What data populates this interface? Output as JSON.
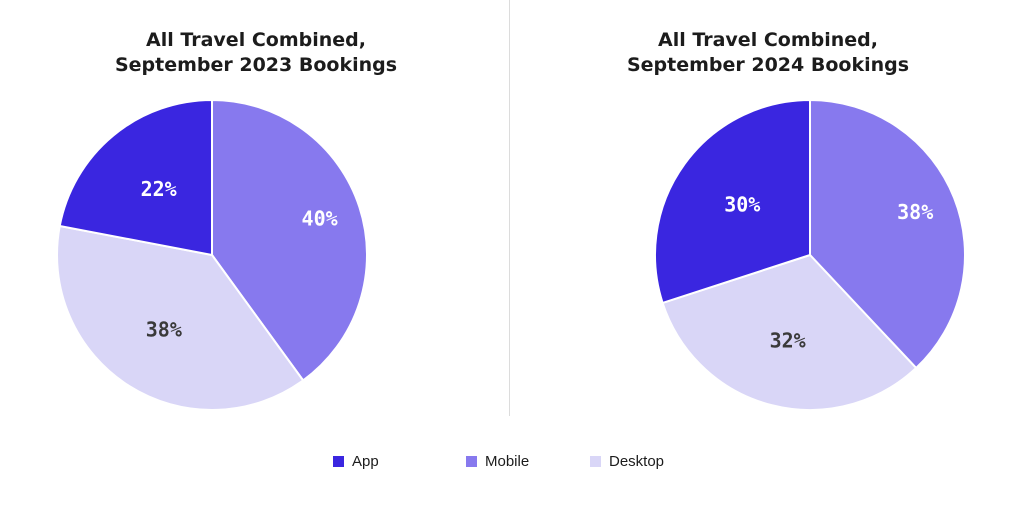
{
  "colors": {
    "app": "#3a26e0",
    "mobile": "#8779ee",
    "desktop": "#d9d6f7",
    "label_light": "#ffffff",
    "label_dark": "#3a3a3a"
  },
  "chart_data": [
    {
      "type": "pie",
      "title_lines": [
        "All Travel Combined,",
        "September 2023 Bookings"
      ],
      "slices": [
        {
          "name": "Mobile",
          "value": 40,
          "label": "40%"
        },
        {
          "name": "Desktop",
          "value": 38,
          "label": "38%"
        },
        {
          "name": "App",
          "value": 22,
          "label": "22%"
        }
      ]
    },
    {
      "type": "pie",
      "title_lines": [
        "All Travel Combined,",
        "September 2024 Bookings"
      ],
      "slices": [
        {
          "name": "Mobile",
          "value": 38,
          "label": "38%"
        },
        {
          "name": "Desktop",
          "value": 32,
          "label": "32%"
        },
        {
          "name": "App",
          "value": 30,
          "label": "30%"
        }
      ]
    }
  ],
  "legend": {
    "items": [
      {
        "label": "App",
        "color_key": "app"
      },
      {
        "label": "Mobile",
        "color_key": "mobile"
      },
      {
        "label": "Desktop",
        "color_key": "desktop"
      }
    ]
  }
}
